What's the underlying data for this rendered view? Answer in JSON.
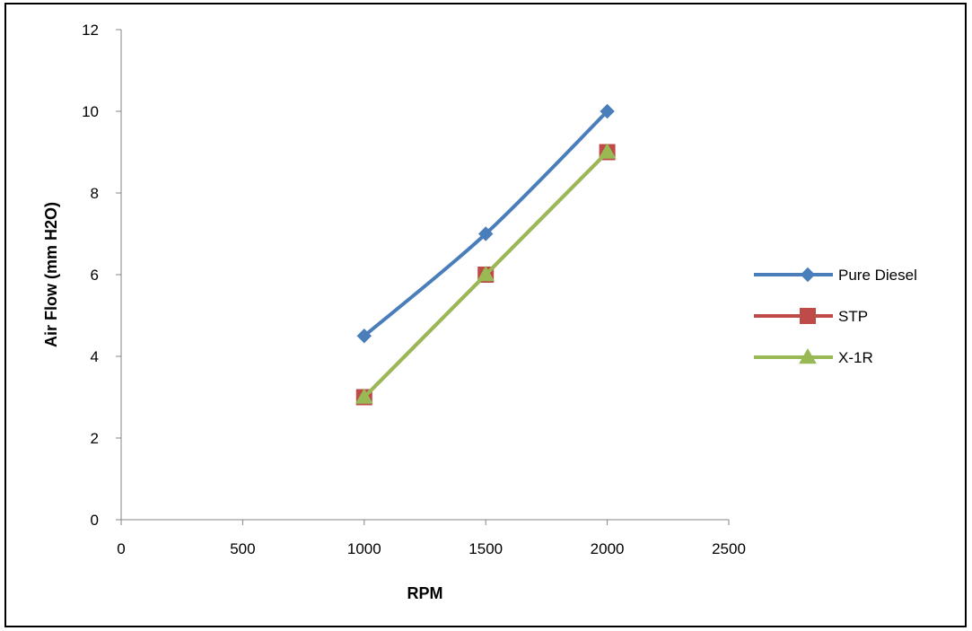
{
  "chart_data": {
    "type": "line",
    "title": "",
    "xlabel": "RPM",
    "ylabel": "Air Flow (mm H2O)",
    "xlim": [
      0,
      2500
    ],
    "ylim": [
      0,
      12
    ],
    "xticks": [
      0,
      500,
      1000,
      1500,
      2000,
      2500
    ],
    "yticks": [
      0,
      2,
      4,
      6,
      8,
      10,
      12
    ],
    "grid": false,
    "legend_position": "right",
    "series": [
      {
        "name": "Pure Diesel",
        "color": "#4A7EBB",
        "marker": "diamond",
        "x": [
          1000,
          1500,
          2000
        ],
        "y": [
          4.5,
          7,
          10
        ]
      },
      {
        "name": "STP",
        "color": "#BE4B48",
        "marker": "square",
        "x": [
          1000,
          1500,
          2000
        ],
        "y": [
          3,
          6,
          9
        ]
      },
      {
        "name": "X-1R",
        "color": "#98B954",
        "marker": "triangle",
        "x": [
          1000,
          1500,
          2000
        ],
        "y": [
          3,
          6,
          9
        ]
      }
    ]
  }
}
